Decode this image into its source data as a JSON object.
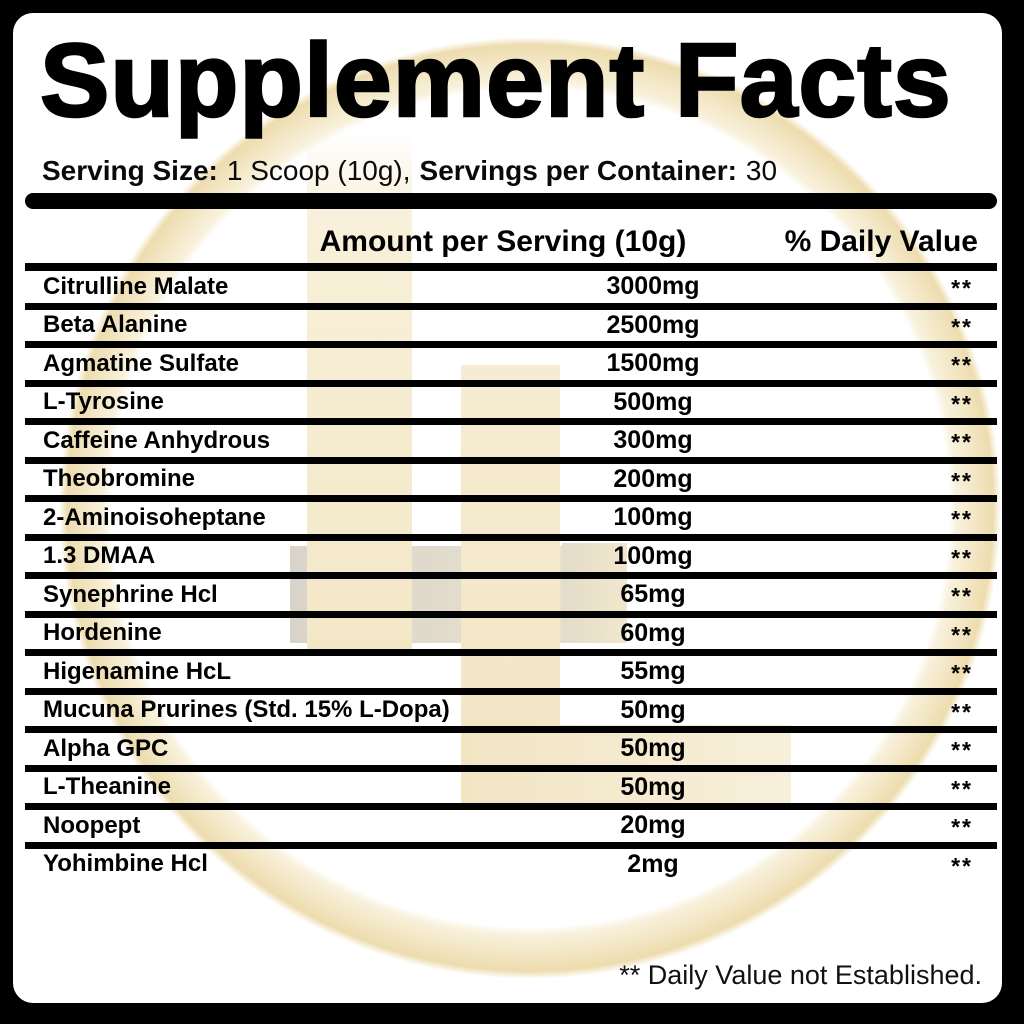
{
  "title": "Supplement Facts",
  "serving": {
    "size_label": "Serving Size:",
    "size_value": "1 Scoop (10g),",
    "container_label": "Servings per Container:",
    "container_value": "30"
  },
  "table": {
    "amount_header": "Amount per Serving (10g)",
    "dv_header": "% Daily Value",
    "rows": [
      {
        "name": "Citrulline Malate",
        "amount": "3000mg",
        "daily_value": "**"
      },
      {
        "name": "Beta Alanine",
        "amount": "2500mg",
        "daily_value": "**"
      },
      {
        "name": "Agmatine Sulfate",
        "amount": "1500mg",
        "daily_value": "**"
      },
      {
        "name": "L-Tyrosine",
        "amount": "500mg",
        "daily_value": "**"
      },
      {
        "name": "Caffeine Anhydrous",
        "amount": "300mg",
        "daily_value": "**"
      },
      {
        "name": "Theobromine",
        "amount": "200mg",
        "daily_value": "**"
      },
      {
        "name": "2-Aminoisoheptane",
        "amount": "100mg",
        "daily_value": "**"
      },
      {
        "name": "1.3 DMAA",
        "amount": "100mg",
        "daily_value": "**"
      },
      {
        "name": "Synephrine Hcl",
        "amount": "65mg",
        "daily_value": "**"
      },
      {
        "name": "Hordenine",
        "amount": "60mg",
        "daily_value": "**"
      },
      {
        "name": "Higenamine HcL",
        "amount": "55mg",
        "daily_value": "**"
      },
      {
        "name": "Mucuna Prurines (Std. 15% L-Dopa)",
        "amount": "50mg",
        "daily_value": "**"
      },
      {
        "name": "Alpha GPC",
        "amount": "50mg",
        "daily_value": "**"
      },
      {
        "name": "L-Theanine",
        "amount": "50mg",
        "daily_value": "**"
      },
      {
        "name": "Noopept",
        "amount": "20mg",
        "daily_value": "**"
      },
      {
        "name": "Yohimbine Hcl",
        "amount": "2mg",
        "daily_value": "**"
      }
    ]
  },
  "footnote": "** Daily Value not Established.",
  "watermark": "4L-brand-logo",
  "colors": {
    "cream": "#f2e5c2",
    "cream_light": "#f8f1dc",
    "cream_dark": "#eddcae",
    "gray": "#d9d4ca",
    "frame": "#000000"
  }
}
